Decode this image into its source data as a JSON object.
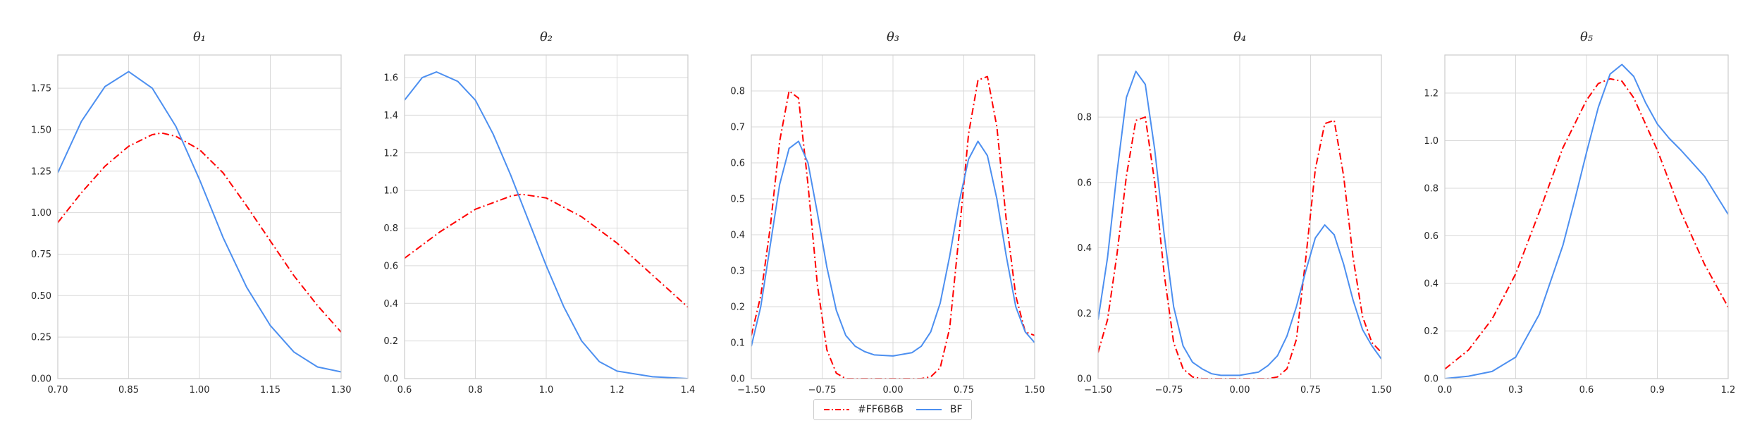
{
  "chart_data": [
    {
      "type": "line",
      "title": "θ1",
      "xlim": [
        0.7,
        1.3
      ],
      "ylim": [
        0,
        1.95
      ],
      "xticks": [
        "0.70",
        "0.85",
        "1.00",
        "1.15",
        "1.30"
      ],
      "yticks": [
        "0.00",
        "0.25",
        "0.50",
        "0.75",
        "1.00",
        "1.25",
        "1.50",
        "1.75"
      ],
      "grid": true,
      "series": [
        {
          "name": "#FF6B6B",
          "color": "#ff0000",
          "style": "dashdot",
          "x": [
            0.7,
            0.75,
            0.8,
            0.85,
            0.9,
            0.92,
            0.95,
            1.0,
            1.05,
            1.1,
            1.15,
            1.2,
            1.25,
            1.3
          ],
          "y": [
            0.94,
            1.12,
            1.28,
            1.4,
            1.47,
            1.48,
            1.46,
            1.38,
            1.24,
            1.04,
            0.83,
            0.62,
            0.44,
            0.28
          ]
        },
        {
          "name": "BF",
          "color": "#4c8ff0",
          "style": "solid",
          "x": [
            0.7,
            0.75,
            0.8,
            0.85,
            0.9,
            0.95,
            1.0,
            1.05,
            1.1,
            1.15,
            1.2,
            1.25,
            1.3
          ],
          "y": [
            1.24,
            1.55,
            1.76,
            1.85,
            1.75,
            1.52,
            1.2,
            0.85,
            0.55,
            0.32,
            0.16,
            0.07,
            0.04
          ]
        }
      ]
    },
    {
      "type": "line",
      "title": "θ2",
      "xlim": [
        0.6,
        1.4
      ],
      "ylim": [
        0,
        1.72
      ],
      "xticks": [
        "0.6",
        "0.8",
        "1.0",
        "1.2",
        "1.4"
      ],
      "yticks": [
        "0.0",
        "0.2",
        "0.4",
        "0.6",
        "0.8",
        "1.0",
        "1.2",
        "1.4",
        "1.6"
      ],
      "grid": true,
      "series": [
        {
          "name": "#FF6B6B",
          "color": "#ff0000",
          "style": "dashdot",
          "x": [
            0.6,
            0.7,
            0.8,
            0.9,
            0.93,
            1.0,
            1.1,
            1.2,
            1.3,
            1.4
          ],
          "y": [
            0.64,
            0.78,
            0.9,
            0.97,
            0.98,
            0.96,
            0.86,
            0.72,
            0.55,
            0.38
          ]
        },
        {
          "name": "BF",
          "color": "#4c8ff0",
          "style": "solid",
          "x": [
            0.6,
            0.65,
            0.69,
            0.75,
            0.8,
            0.85,
            0.9,
            0.95,
            1.0,
            1.05,
            1.1,
            1.15,
            1.2,
            1.3,
            1.4
          ],
          "y": [
            1.48,
            1.6,
            1.63,
            1.58,
            1.48,
            1.3,
            1.08,
            0.84,
            0.6,
            0.38,
            0.2,
            0.09,
            0.04,
            0.01,
            0.0
          ]
        }
      ]
    },
    {
      "type": "line",
      "title": "θ3",
      "xlim": [
        -1.5,
        1.5
      ],
      "ylim": [
        0,
        0.9
      ],
      "xticks": [
        "−1.50",
        "−0.75",
        "0.00",
        "0.75",
        "1.50"
      ],
      "yticks": [
        "0.0",
        "0.1",
        "0.2",
        "0.3",
        "0.4",
        "0.5",
        "0.6",
        "0.7",
        "0.8"
      ],
      "grid": true,
      "series": [
        {
          "name": "#FF6B6B",
          "color": "#ff0000",
          "style": "dashdot",
          "x": [
            -1.5,
            -1.4,
            -1.3,
            -1.2,
            -1.1,
            -1.0,
            -0.9,
            -0.8,
            -0.7,
            -0.6,
            -0.5,
            -0.4,
            -0.3,
            0.0,
            0.3,
            0.4,
            0.5,
            0.6,
            0.7,
            0.8,
            0.9,
            1.0,
            1.1,
            1.2,
            1.3,
            1.4,
            1.5
          ],
          "y": [
            0.12,
            0.23,
            0.42,
            0.66,
            0.8,
            0.78,
            0.54,
            0.26,
            0.08,
            0.015,
            0.0,
            0.0,
            0.0,
            0.0,
            0.0,
            0.005,
            0.03,
            0.14,
            0.4,
            0.68,
            0.83,
            0.84,
            0.7,
            0.44,
            0.23,
            0.13,
            0.12
          ]
        },
        {
          "name": "BF",
          "color": "#4c8ff0",
          "style": "solid",
          "x": [
            -1.5,
            -1.4,
            -1.3,
            -1.2,
            -1.1,
            -1.0,
            -0.9,
            -0.8,
            -0.7,
            -0.6,
            -0.5,
            -0.4,
            -0.3,
            -0.2,
            0.0,
            0.2,
            0.3,
            0.4,
            0.5,
            0.6,
            0.7,
            0.8,
            0.9,
            1.0,
            1.1,
            1.2,
            1.3,
            1.4,
            1.5
          ],
          "y": [
            0.09,
            0.2,
            0.37,
            0.54,
            0.64,
            0.66,
            0.6,
            0.46,
            0.31,
            0.19,
            0.12,
            0.09,
            0.075,
            0.066,
            0.063,
            0.072,
            0.09,
            0.13,
            0.21,
            0.34,
            0.49,
            0.61,
            0.66,
            0.62,
            0.5,
            0.34,
            0.2,
            0.13,
            0.1
          ]
        }
      ]
    },
    {
      "type": "line",
      "title": "θ4",
      "xlim": [
        -1.5,
        1.5
      ],
      "ylim": [
        0,
        0.99
      ],
      "xticks": [
        "−1.50",
        "−0.75",
        "0.00",
        "0.75",
        "1.50"
      ],
      "yticks": [
        "0.0",
        "0.2",
        "0.4",
        "0.6",
        "0.8"
      ],
      "grid": true,
      "series": [
        {
          "name": "#FF6B6B",
          "color": "#ff0000",
          "style": "dashdot",
          "x": [
            -1.5,
            -1.4,
            -1.3,
            -1.2,
            -1.1,
            -1.0,
            -0.9,
            -0.8,
            -0.7,
            -0.6,
            -0.5,
            -0.4,
            -0.3,
            0.0,
            0.3,
            0.4,
            0.5,
            0.6,
            0.7,
            0.8,
            0.9,
            1.0,
            1.1,
            1.2,
            1.3,
            1.4,
            1.5
          ],
          "y": [
            0.08,
            0.18,
            0.38,
            0.62,
            0.79,
            0.8,
            0.6,
            0.32,
            0.11,
            0.03,
            0.005,
            0.0,
            0.0,
            0.0,
            0.0,
            0.005,
            0.03,
            0.12,
            0.37,
            0.64,
            0.78,
            0.79,
            0.62,
            0.37,
            0.19,
            0.11,
            0.08
          ]
        },
        {
          "name": "BF",
          "color": "#4c8ff0",
          "style": "solid",
          "x": [
            -1.5,
            -1.4,
            -1.3,
            -1.2,
            -1.1,
            -1.0,
            -0.9,
            -0.8,
            -0.7,
            -0.6,
            -0.5,
            -0.4,
            -0.3,
            -0.2,
            0.0,
            0.2,
            0.3,
            0.4,
            0.5,
            0.6,
            0.7,
            0.8,
            0.9,
            1.0,
            1.1,
            1.2,
            1.3,
            1.4,
            1.5
          ],
          "y": [
            0.18,
            0.37,
            0.63,
            0.86,
            0.94,
            0.9,
            0.7,
            0.44,
            0.22,
            0.1,
            0.05,
            0.03,
            0.015,
            0.01,
            0.01,
            0.02,
            0.04,
            0.07,
            0.13,
            0.22,
            0.33,
            0.43,
            0.47,
            0.44,
            0.35,
            0.24,
            0.15,
            0.1,
            0.06
          ]
        }
      ]
    },
    {
      "type": "line",
      "title": "θ5",
      "xlim": [
        0.0,
        1.2
      ],
      "ylim": [
        0,
        1.36
      ],
      "xticks": [
        "0.0",
        "0.3",
        "0.6",
        "0.9",
        "1.2"
      ],
      "yticks": [
        "0.0",
        "0.2",
        "0.4",
        "0.6",
        "0.8",
        "1.0",
        "1.2"
      ],
      "grid": true,
      "series": [
        {
          "name": "#FF6B6B",
          "color": "#ff0000",
          "style": "dashdot",
          "x": [
            0.0,
            0.1,
            0.2,
            0.3,
            0.4,
            0.5,
            0.6,
            0.65,
            0.7,
            0.75,
            0.8,
            0.9,
            1.0,
            1.1,
            1.2
          ],
          "y": [
            0.04,
            0.12,
            0.25,
            0.44,
            0.7,
            0.97,
            1.17,
            1.24,
            1.26,
            1.25,
            1.18,
            0.96,
            0.7,
            0.48,
            0.3
          ]
        },
        {
          "name": "BF",
          "color": "#4c8ff0",
          "style": "solid",
          "x": [
            0.0,
            0.1,
            0.2,
            0.3,
            0.4,
            0.5,
            0.55,
            0.6,
            0.65,
            0.7,
            0.75,
            0.8,
            0.85,
            0.9,
            0.95,
            1.0,
            1.1,
            1.2
          ],
          "y": [
            0.0,
            0.01,
            0.03,
            0.09,
            0.27,
            0.56,
            0.75,
            0.95,
            1.14,
            1.28,
            1.32,
            1.27,
            1.16,
            1.07,
            1.01,
            0.96,
            0.85,
            0.69
          ]
        }
      ]
    }
  ],
  "legend": {
    "items": [
      {
        "label": "#FF6B6B",
        "color": "#ff0000",
        "style": "dashdot"
      },
      {
        "label": "BF",
        "color": "#4c8ff0",
        "style": "solid"
      }
    ]
  }
}
